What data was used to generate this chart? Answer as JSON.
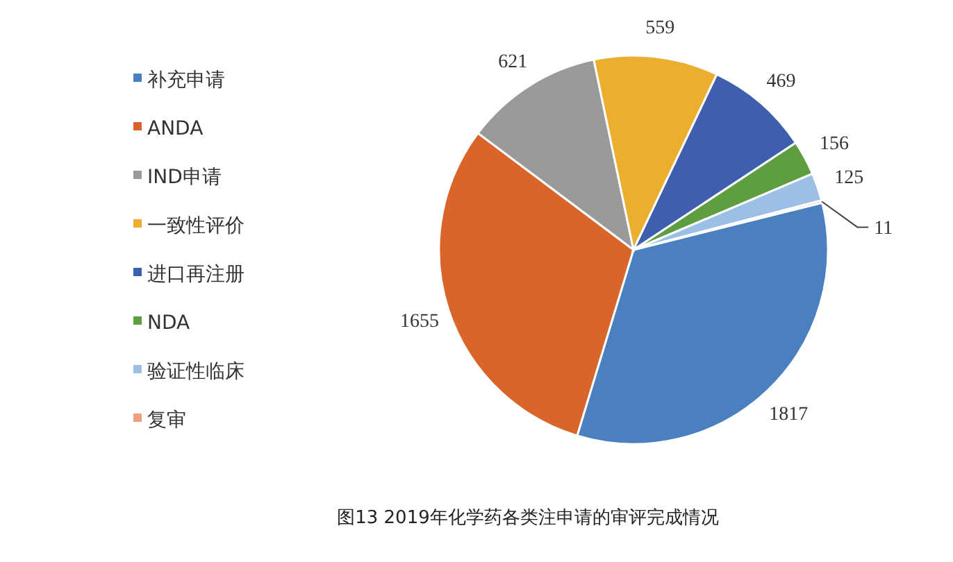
{
  "chart_data": {
    "type": "pie",
    "title": "图13 2019年化学药各类注申请的审评完成情况",
    "categories": [
      "补充申请",
      "ANDA",
      "IND申请",
      "一致性评价",
      "进口再注册",
      "NDA",
      "验证性临床",
      "复审"
    ],
    "values": [
      1817,
      1655,
      621,
      559,
      469,
      156,
      125,
      11
    ],
    "colors": [
      "#4a80c0",
      "#d9652b",
      "#9a9a9a",
      "#ebae2e",
      "#3d5fae",
      "#5f9e40",
      "#9cbfe6",
      "#f0a080"
    ],
    "data_labels": true,
    "legend": "left"
  }
}
